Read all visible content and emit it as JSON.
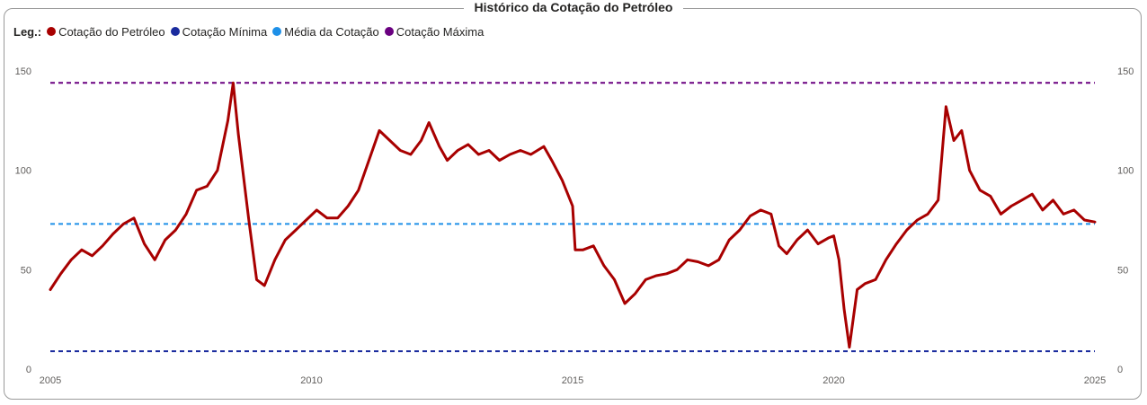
{
  "title": "Histórico da Cotação do Petróleo",
  "legend": {
    "label": "Leg.:",
    "entries": [
      {
        "name": "Cotação do Petróleo",
        "color": "#a80000"
      },
      {
        "name": "Cotação Mínima",
        "color": "#1a2b9e"
      },
      {
        "name": "Média da Cotação",
        "color": "#1e90e8"
      },
      {
        "name": "Cotação Máxima",
        "color": "#6a0080"
      }
    ]
  },
  "chart_data": {
    "type": "line",
    "xlim": [
      2005.0,
      2025.0
    ],
    "ylim": [
      0,
      150
    ],
    "xticks": [
      2005,
      2010,
      2015,
      2020,
      2025
    ],
    "yticks": [
      0,
      50,
      100,
      150
    ],
    "grid": false,
    "legend_position": "top-left",
    "reference_lines": [
      {
        "name": "Cotação Máxima",
        "value": 144,
        "color": "#6a0080"
      },
      {
        "name": "Média da Cotação",
        "value": 73,
        "color": "#1e90e8"
      },
      {
        "name": "Cotação Mínima",
        "value": 9,
        "color": "#1a2b9e"
      }
    ],
    "series": [
      {
        "name": "Cotação do Petróleo",
        "color": "#a80000",
        "x": [
          2005.0,
          2005.2,
          2005.4,
          2005.6,
          2005.8,
          2006.0,
          2006.2,
          2006.4,
          2006.6,
          2006.8,
          2007.0,
          2007.2,
          2007.4,
          2007.6,
          2007.8,
          2008.0,
          2008.2,
          2008.4,
          2008.5,
          2008.6,
          2008.8,
          2008.95,
          2009.1,
          2009.3,
          2009.5,
          2009.7,
          2009.9,
          2010.1,
          2010.3,
          2010.5,
          2010.7,
          2010.9,
          2011.1,
          2011.3,
          2011.5,
          2011.7,
          2011.9,
          2012.1,
          2012.25,
          2012.45,
          2012.6,
          2012.8,
          2013.0,
          2013.2,
          2013.4,
          2013.6,
          2013.8,
          2014.0,
          2014.2,
          2014.45,
          2014.6,
          2014.8,
          2015.0,
          2015.05,
          2015.2,
          2015.4,
          2015.6,
          2015.8,
          2016.0,
          2016.2,
          2016.4,
          2016.6,
          2016.8,
          2017.0,
          2017.2,
          2017.4,
          2017.6,
          2017.8,
          2018.0,
          2018.2,
          2018.4,
          2018.6,
          2018.8,
          2018.95,
          2019.1,
          2019.3,
          2019.5,
          2019.7,
          2019.9,
          2020.0,
          2020.1,
          2020.2,
          2020.3,
          2020.45,
          2020.6,
          2020.8,
          2021.0,
          2021.2,
          2021.4,
          2021.6,
          2021.8,
          2022.0,
          2022.15,
          2022.3,
          2022.45,
          2022.6,
          2022.8,
          2023.0,
          2023.2,
          2023.4,
          2023.6,
          2023.8,
          2024.0,
          2024.2,
          2024.4,
          2024.6,
          2024.8,
          2025.0
        ],
        "y": [
          40,
          48,
          55,
          60,
          57,
          62,
          68,
          73,
          76,
          63,
          55,
          65,
          70,
          78,
          90,
          92,
          100,
          125,
          144,
          118,
          75,
          45,
          42,
          55,
          65,
          70,
          75,
          80,
          76,
          76,
          82,
          90,
          105,
          120,
          115,
          110,
          108,
          115,
          124,
          112,
          105,
          110,
          113,
          108,
          110,
          105,
          108,
          110,
          108,
          112,
          105,
          95,
          82,
          60,
          60,
          62,
          52,
          45,
          33,
          38,
          45,
          47,
          48,
          50,
          55,
          54,
          52,
          55,
          65,
          70,
          77,
          80,
          78,
          62,
          58,
          65,
          70,
          63,
          66,
          67,
          55,
          30,
          11,
          40,
          43,
          45,
          55,
          63,
          70,
          75,
          78,
          85,
          132,
          115,
          120,
          100,
          90,
          87,
          78,
          82,
          85,
          88,
          80,
          85,
          78,
          80,
          75,
          74
        ]
      }
    ]
  }
}
